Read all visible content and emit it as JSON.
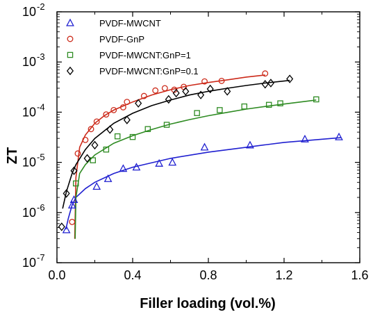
{
  "chart_data": {
    "type": "scatter",
    "title": "",
    "xlabel": "Filler loading (vol.%)",
    "ylabel": "ZT",
    "xlim": [
      0.0,
      1.6
    ],
    "ylim": [
      1e-07,
      0.01
    ],
    "yscale": "log",
    "x_ticks": [
      0.0,
      0.4,
      0.8,
      1.2,
      1.6
    ],
    "x_tick_labels": [
      "0.0",
      "0.4",
      "0.8",
      "1.2",
      "1.6"
    ],
    "y_ticks": [
      1e-07,
      1e-06,
      1e-05,
      0.0001,
      0.001,
      0.01
    ],
    "y_tick_bases": [
      "10",
      "10",
      "10",
      "10",
      "10",
      "10"
    ],
    "y_tick_exponents": [
      "-7",
      "-6",
      "-5",
      "-4",
      "-3",
      "-2"
    ],
    "grid": false,
    "legend_position": "top-left",
    "series": [
      {
        "name": "PVDF-MWCNT",
        "marker": "triangle",
        "color": "#1f1fd0",
        "points": [
          [
            0.05,
            4.5e-07
          ],
          [
            0.08,
            1.4e-06
          ],
          [
            0.09,
            1.8e-06
          ],
          [
            0.21,
            3.3e-06
          ],
          [
            0.27,
            4.7e-06
          ],
          [
            0.35,
            7.5e-06
          ],
          [
            0.42,
            8e-06
          ],
          [
            0.54,
            9.5e-06
          ],
          [
            0.61,
            1e-05
          ],
          [
            0.78,
            2e-05
          ],
          [
            1.02,
            2.2e-05
          ],
          [
            1.31,
            2.9e-05
          ],
          [
            1.49,
            3.2e-05
          ]
        ],
        "fit": [
          [
            0.047,
            4.6e-07
          ],
          [
            0.06,
            7.6e-07
          ],
          [
            0.08,
            1.4e-06
          ],
          [
            0.1,
            2e-06
          ],
          [
            0.15,
            3e-06
          ],
          [
            0.2,
            4e-06
          ],
          [
            0.3,
            6e-06
          ],
          [
            0.4,
            8e-06
          ],
          [
            0.6,
            1.2e-05
          ],
          [
            0.8,
            1.6e-05
          ],
          [
            1.0,
            2e-05
          ],
          [
            1.2,
            2.5e-05
          ],
          [
            1.5,
            3.1e-05
          ]
        ]
      },
      {
        "name": "PVDF-GnP",
        "marker": "circle",
        "color": "#cc2a1a",
        "points": [
          [
            0.08,
            6.5e-07
          ],
          [
            0.11,
            1.5e-05
          ],
          [
            0.15,
            2.8e-05
          ],
          [
            0.18,
            4.6e-05
          ],
          [
            0.21,
            6.5e-05
          ],
          [
            0.26,
            9e-05
          ],
          [
            0.3,
            0.00011
          ],
          [
            0.35,
            0.000125
          ],
          [
            0.37,
            0.00016
          ],
          [
            0.46,
            0.00021
          ],
          [
            0.52,
            0.00027
          ],
          [
            0.57,
            0.0003
          ],
          [
            0.62,
            0.00028
          ],
          [
            0.67,
            0.00032
          ],
          [
            0.78,
            0.00041
          ],
          [
            0.87,
            0.00042
          ],
          [
            1.1,
            0.00059
          ]
        ],
        "fit": [
          [
            0.094,
            3e-07
          ],
          [
            0.1,
            5e-06
          ],
          [
            0.12,
            2e-05
          ],
          [
            0.15,
            3.5e-05
          ],
          [
            0.2,
            6e-05
          ],
          [
            0.25,
            8.5e-05
          ],
          [
            0.3,
            0.00011
          ],
          [
            0.4,
            0.00016
          ],
          [
            0.5,
            0.00022
          ],
          [
            0.6,
            0.00028
          ],
          [
            0.7,
            0.00034
          ],
          [
            0.8,
            0.00039
          ],
          [
            0.9,
            0.00044
          ],
          [
            1.0,
            0.0005
          ],
          [
            1.1,
            0.00055
          ]
        ]
      },
      {
        "name": "PVDF-MWCNT:GnP=1",
        "marker": "square",
        "color": "#2e8b22",
        "points": [
          [
            0.1,
            3.8e-06
          ],
          [
            0.19,
            1.1e-05
          ],
          [
            0.26,
            1.8e-05
          ],
          [
            0.32,
            3.3e-05
          ],
          [
            0.4,
            3.2e-05
          ],
          [
            0.48,
            4.6e-05
          ],
          [
            0.58,
            5.6e-05
          ],
          [
            0.74,
            9.6e-05
          ],
          [
            0.86,
            0.00011
          ],
          [
            0.99,
            0.00013
          ],
          [
            1.12,
            0.00014
          ],
          [
            1.18,
            0.00015
          ],
          [
            1.37,
            0.00018
          ]
        ],
        "fit": [
          [
            0.096,
            3e-07
          ],
          [
            0.1,
            2e-06
          ],
          [
            0.12,
            6e-06
          ],
          [
            0.15,
            9e-06
          ],
          [
            0.2,
            1.4e-05
          ],
          [
            0.3,
            2.4e-05
          ],
          [
            0.4,
            3.4e-05
          ],
          [
            0.5,
            4.5e-05
          ],
          [
            0.6,
            5.8e-05
          ],
          [
            0.7,
            7.1e-05
          ],
          [
            0.8,
            8.5e-05
          ],
          [
            0.9,
            9.9e-05
          ],
          [
            1.0,
            0.000115
          ],
          [
            1.1,
            0.00013
          ],
          [
            1.2,
            0.000145
          ],
          [
            1.37,
            0.000175
          ]
        ]
      },
      {
        "name": "PVDF-MWCNT:GnP=0.1",
        "marker": "diamond",
        "color": "#000000",
        "points": [
          [
            0.025,
            5.2e-07
          ],
          [
            0.05,
            2.4e-06
          ],
          [
            0.09,
            6.8e-06
          ],
          [
            0.16,
            1.2e-05
          ],
          [
            0.2,
            2.2e-05
          ],
          [
            0.28,
            4.5e-05
          ],
          [
            0.37,
            7e-05
          ],
          [
            0.43,
            0.00015
          ],
          [
            0.59,
            0.00018
          ],
          [
            0.63,
            0.00024
          ],
          [
            0.68,
            0.00026
          ],
          [
            0.76,
            0.00022
          ],
          [
            0.81,
            0.00029
          ],
          [
            0.9,
            0.00026
          ],
          [
            1.1,
            0.00036
          ],
          [
            1.13,
            0.00038
          ],
          [
            1.23,
            0.00046
          ]
        ],
        "fit": [
          [
            0.03,
            1.2e-06
          ],
          [
            0.05,
            2.6e-06
          ],
          [
            0.08,
            6e-06
          ],
          [
            0.1,
            9e-06
          ],
          [
            0.15,
            1.8e-05
          ],
          [
            0.2,
            3e-05
          ],
          [
            0.3,
            6e-05
          ],
          [
            0.4,
            9.5e-05
          ],
          [
            0.5,
            0.000135
          ],
          [
            0.6,
            0.000175
          ],
          [
            0.7,
            0.00022
          ],
          [
            0.8,
            0.00026
          ],
          [
            0.9,
            0.0003
          ],
          [
            1.0,
            0.00034
          ],
          [
            1.1,
            0.00038
          ],
          [
            1.23,
            0.00043
          ]
        ]
      }
    ]
  }
}
